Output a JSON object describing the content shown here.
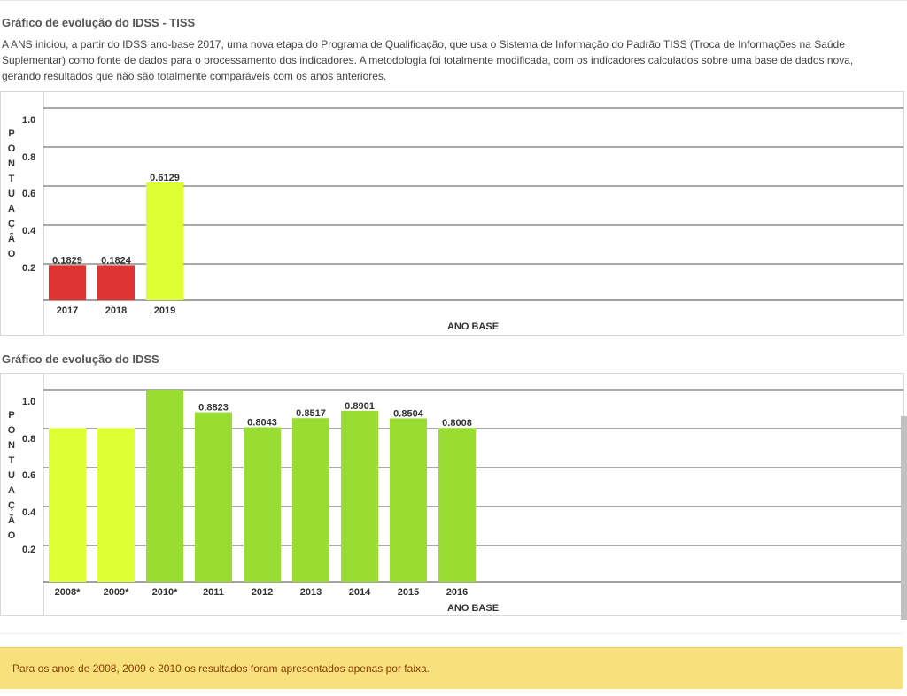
{
  "chart1": {
    "title": "Gráfico de evolução do IDSS - TISS",
    "description": "A ANS iniciou, a partir do IDSS ano-base 2017, uma nova etapa do Programa de Qualificação, que usa o Sistema de Informação do Padrão TISS (Troca de Informações na Saúde Suplementar) como fonte de dados para o processamento dos indicadores. A metodologia foi totalmente modificada, com os indicadores calculados sobre uma base de dados nova, gerando resultados que não são totalmente comparáveis com os anos anteriores."
  },
  "chart2": {
    "title": "Gráfico de evolução do IDSS"
  },
  "note": "Para os anos de 2008, 2009 e 2010 os resultados foram apresentados apenas por faixa.",
  "chart_data": [
    {
      "type": "bar",
      "title": "Gráfico de evolução do IDSS - TISS",
      "xlabel": "ANO BASE",
      "ylabel": "PONTUAÇÃO",
      "yticks": [
        "0.2",
        "0.4",
        "0.6",
        "0.8",
        "1.0"
      ],
      "ylim": [
        0,
        1.0
      ],
      "grid": true,
      "categories": [
        "2017",
        "2018",
        "2019"
      ],
      "values": [
        0.1829,
        0.1824,
        0.6129
      ],
      "value_labels": [
        "0.1829",
        "0.1824",
        "0.6129"
      ],
      "colors": [
        "#dd3333",
        "#dd3333",
        "#ddff33"
      ]
    },
    {
      "type": "bar",
      "title": "Gráfico de evolução do IDSS",
      "xlabel": "ANO BASE",
      "ylabel": "PONTUAÇÃO",
      "yticks": [
        "0.2",
        "0.4",
        "0.6",
        "0.8",
        "1.0"
      ],
      "ylim": [
        0,
        1.0
      ],
      "grid": true,
      "categories": [
        "2008*",
        "2009*",
        "2010*",
        "2011",
        "2012",
        "2013",
        "2014",
        "2015",
        "2016"
      ],
      "values": [
        0.8,
        0.8,
        1.0,
        0.8823,
        0.8043,
        0.8517,
        0.8901,
        0.8504,
        0.8008
      ],
      "value_labels": [
        "",
        "",
        "",
        "0.8823",
        "0.8043",
        "0.8517",
        "0.8901",
        "0.8504",
        "0.8008"
      ],
      "colors": [
        "#ddff33",
        "#ddff33",
        "#99dd33",
        "#99dd33",
        "#99dd33",
        "#99dd33",
        "#99dd33",
        "#99dd33",
        "#99dd33"
      ]
    }
  ]
}
